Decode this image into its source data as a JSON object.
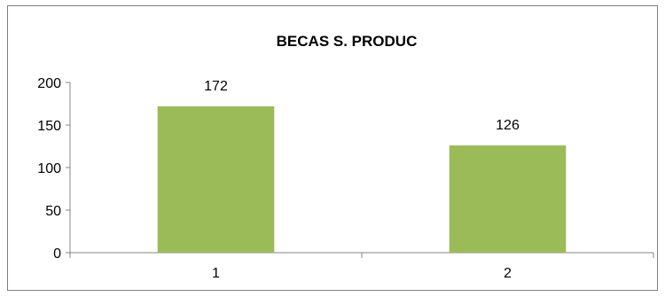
{
  "chart_data": {
    "type": "bar",
    "title": "BECAS S. PRODUC",
    "categories": [
      "1",
      "2"
    ],
    "values": [
      172,
      126
    ],
    "data_labels": [
      "172",
      "126"
    ],
    "xlabel": "",
    "ylabel": "",
    "ylim": [
      0,
      200
    ],
    "yticks": [
      "0",
      "50",
      "100",
      "150",
      "200"
    ],
    "grid": false,
    "legend": "none",
    "bar_color": "#9bbb59",
    "axis_color": "#868686"
  }
}
